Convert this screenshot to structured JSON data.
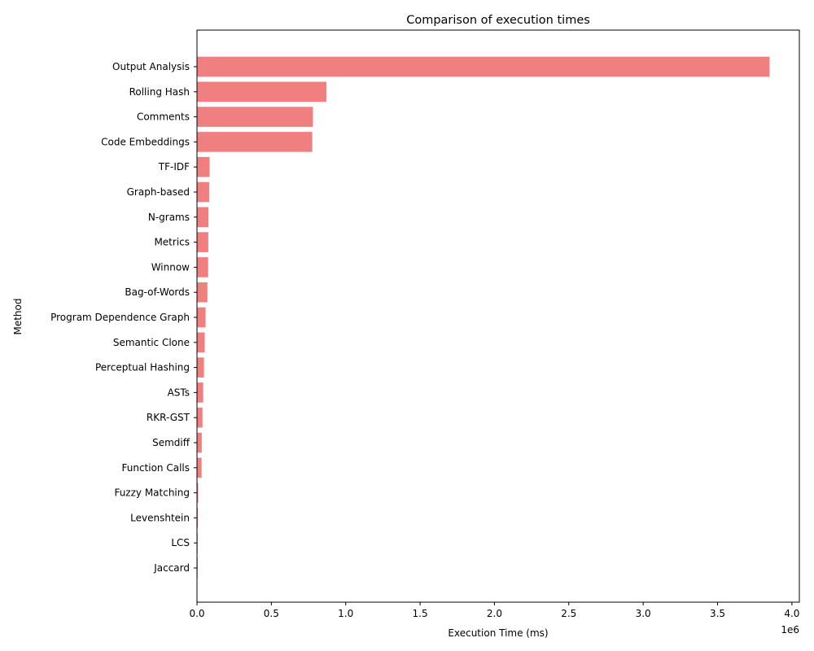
{
  "chart_data": {
    "type": "bar",
    "orientation": "horizontal",
    "title": "Comparison of execution times",
    "xlabel": "Execution Time (ms)",
    "ylabel": "Method",
    "x_scale_label": "1e6",
    "xlim": [
      0,
      4.05
    ],
    "x_ticks": [
      0.0,
      0.5,
      1.0,
      1.5,
      2.0,
      2.5,
      3.0,
      3.5,
      4.0
    ],
    "x_tick_labels": [
      "0.0",
      "0.5",
      "1.0",
      "1.5",
      "2.0",
      "2.5",
      "3.0",
      "3.5",
      "4.0"
    ],
    "grid": false,
    "bar_color": "#f08080",
    "categories": [
      "Output Analysis",
      "Rolling Hash",
      "Comments",
      "Code Embeddings",
      "TF-IDF",
      "Graph-based",
      "N-grams",
      "Metrics",
      "Winnow",
      "Bag-of-Words",
      "Program Dependence Graph",
      "Semantic Clone",
      "Perceptual Hashing",
      "ASTs",
      "RKR-GST",
      "Semdiff",
      "Function Calls",
      "Fuzzy Matching",
      "Levenshtein",
      "LCS",
      "Jaccard"
    ],
    "values": [
      3.85,
      0.87,
      0.78,
      0.775,
      0.085,
      0.082,
      0.077,
      0.076,
      0.075,
      0.07,
      0.058,
      0.052,
      0.047,
      0.042,
      0.037,
      0.032,
      0.031,
      0.008,
      0.006,
      0.002,
      0.001
    ]
  }
}
